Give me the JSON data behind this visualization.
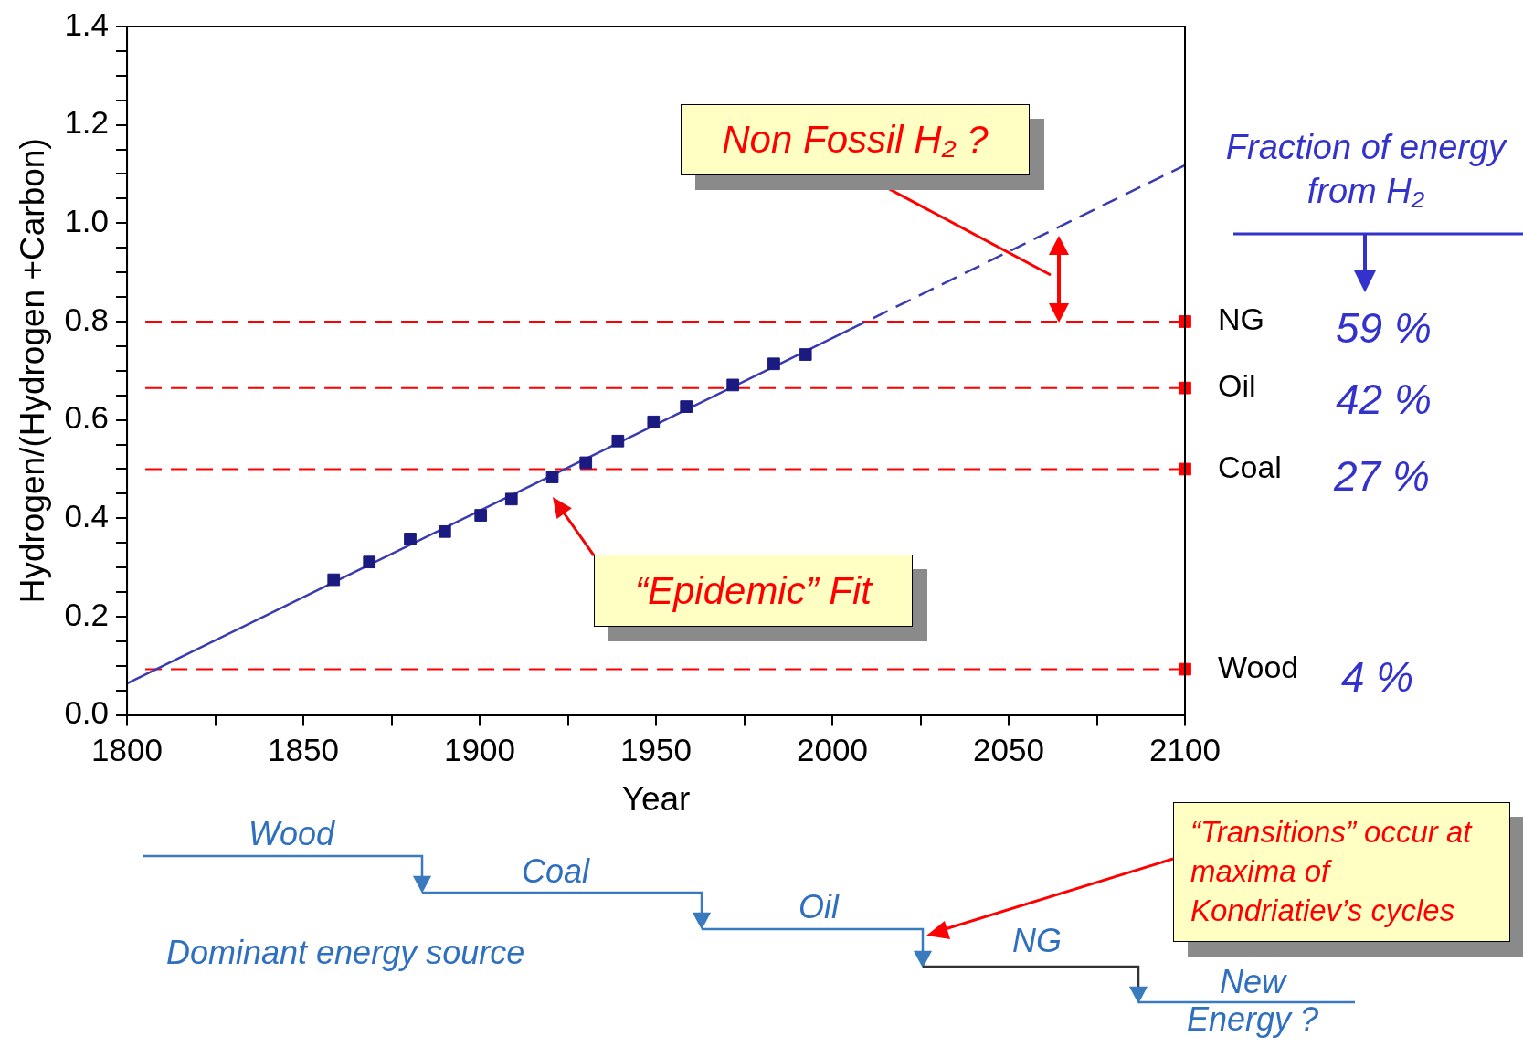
{
  "chart_data": {
    "type": "scatter",
    "xlabel": "Year",
    "ylabel": "Hydrogen/(Hydrogen +Carbon)",
    "xlim": [
      1800,
      2100
    ],
    "ylim": [
      0,
      1.4
    ],
    "xticks": [
      1800,
      {
        "value": 1825,
        "label": null
      },
      1850,
      {
        "value": 1875,
        "label": null
      },
      1900,
      {
        "value": 1925,
        "label": null
      },
      1950,
      {
        "value": 1975,
        "label": null
      },
      2000,
      {
        "value": 2025,
        "label": null
      },
      2050,
      {
        "value": 2075,
        "label": null
      },
      2100
    ],
    "yticks": [
      {
        "value": 0,
        "label": "0.0"
      },
      {
        "value": 0.05,
        "label": null
      },
      {
        "value": 0.1,
        "label": null
      },
      {
        "value": 0.15,
        "label": null
      },
      0.2,
      {
        "value": 0.25,
        "label": null
      },
      {
        "value": 0.3,
        "label": null
      },
      {
        "value": 0.35,
        "label": null
      },
      0.4,
      {
        "value": 0.45,
        "label": null
      },
      {
        "value": 0.5,
        "label": null
      },
      {
        "value": 0.55,
        "label": null
      },
      0.6,
      {
        "value": 0.65,
        "label": null
      },
      {
        "value": 0.7,
        "label": null
      },
      {
        "value": 0.75,
        "label": null
      },
      0.8,
      {
        "value": 0.85,
        "label": null
      },
      {
        "value": 0.9,
        "label": null
      },
      {
        "value": 0.95,
        "label": null
      },
      {
        "value": 1,
        "label": "1.0"
      },
      {
        "value": 1.05,
        "label": null
      },
      {
        "value": 1.1,
        "label": null
      },
      {
        "value": 1.15,
        "label": null
      },
      1.2,
      {
        "value": 1.25,
        "label": null
      },
      {
        "value": 1.3,
        "label": null
      },
      {
        "value": 1.35,
        "label": null
      },
      1.4
    ],
    "grid": false,
    "legend": false,
    "marker": "square",
    "series": [
      {
        "type": "scatter",
        "color": "#1a1a80",
        "x": [
          1858.6,
          1868.7,
          1880.3,
          1890.1,
          1900.3,
          1909.0,
          1920.6,
          1930.1,
          1939.2,
          1949.3,
          1958.6,
          1971.8,
          1983.4,
          1992.4
        ],
        "values": [
          0.275,
          0.311,
          0.358,
          0.373,
          0.406,
          0.439,
          0.484,
          0.513,
          0.557,
          0.596,
          0.627,
          0.671,
          0.714,
          0.733
        ]
      },
      {
        "type": "line",
        "color": "#3b3bb0",
        "line_style": "solid",
        "marker": "none",
        "x": [
          1800,
          2005
        ],
        "values": [
          0.064,
          0.784
        ]
      },
      {
        "type": "line",
        "color": "#3b3bb0",
        "line_style": "dashed",
        "marker": "none",
        "x": [
          2005,
          2100
        ],
        "values": [
          0.784,
          1.118
        ]
      },
      {
        "type": "scatter",
        "color": "#ff0000",
        "x": [
          2100,
          2100,
          2100,
          2100
        ],
        "values": [
          0.8,
          0.665,
          0.5,
          0.093
        ]
      }
    ],
    "ref_lines": [
      {
        "axis": "y",
        "value": 0.8,
        "label": "NG",
        "color": "#ff0000",
        "line_style": "dashed"
      },
      {
        "axis": "y",
        "value": 0.665,
        "label": "Oil",
        "color": "#ff0000",
        "line_style": "dashed"
      },
      {
        "axis": "y",
        "value": 0.5,
        "label": "Coal",
        "color": "#ff0000",
        "line_style": "dashed"
      },
      {
        "axis": "y",
        "value": 0.093,
        "label": "Wood",
        "color": "#ff0000",
        "line_style": "dashed"
      }
    ],
    "annotations": [
      "Non Fossil H₂ ?",
      "Fraction of energy from H₂",
      "59 %",
      "42 %",
      "27 %",
      "4 %",
      "“Epidemic” Fit",
      "“Transitions” occur at maxima of Kondriatiev’s cycles",
      "Wood",
      "Coal",
      "Oil",
      "NG",
      "New Energy ?",
      "Dominant energy source"
    ]
  }
}
